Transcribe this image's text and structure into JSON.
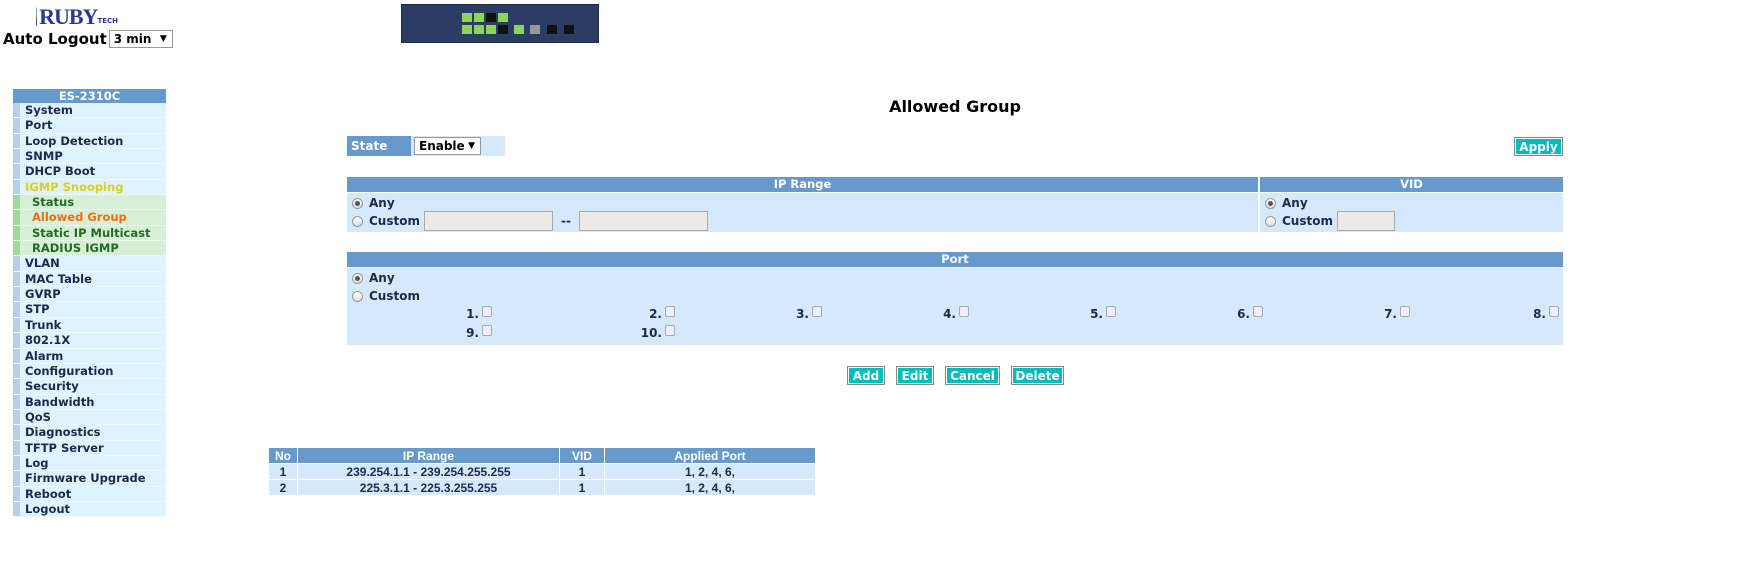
{
  "header": {
    "logo_text": "RUBY",
    "logo_sub": "TECH",
    "auto_logout_label": "Auto Logout",
    "auto_logout_value": "3 min"
  },
  "sidebar": {
    "title": "ES-2310C",
    "items": [
      {
        "label": "System",
        "type": "normal"
      },
      {
        "label": "Port",
        "type": "normal"
      },
      {
        "label": "Loop Detection",
        "type": "normal"
      },
      {
        "label": "SNMP",
        "type": "normal"
      },
      {
        "label": "DHCP Boot",
        "type": "normal"
      },
      {
        "label": "IGMP Snooping",
        "type": "yellow"
      },
      {
        "label": "Status",
        "type": "sub"
      },
      {
        "label": "Allowed Group",
        "type": "sub active"
      },
      {
        "label": "Static IP Multicast",
        "type": "sub"
      },
      {
        "label": "RADIUS IGMP",
        "type": "sub"
      },
      {
        "label": "VLAN",
        "type": "normal"
      },
      {
        "label": "MAC Table",
        "type": "normal"
      },
      {
        "label": "GVRP",
        "type": "normal"
      },
      {
        "label": "STP",
        "type": "normal"
      },
      {
        "label": "Trunk",
        "type": "normal"
      },
      {
        "label": "802.1X",
        "type": "normal"
      },
      {
        "label": "Alarm",
        "type": "normal"
      },
      {
        "label": "Configuration",
        "type": "normal"
      },
      {
        "label": "Security",
        "type": "normal"
      },
      {
        "label": "Bandwidth",
        "type": "normal"
      },
      {
        "label": "QoS",
        "type": "normal"
      },
      {
        "label": "Diagnostics",
        "type": "normal"
      },
      {
        "label": "TFTP Server",
        "type": "normal"
      },
      {
        "label": "Log",
        "type": "normal"
      },
      {
        "label": "Firmware Upgrade",
        "type": "normal"
      },
      {
        "label": "Reboot",
        "type": "normal"
      },
      {
        "label": "Logout",
        "type": "normal"
      }
    ]
  },
  "main": {
    "title": "Allowed Group",
    "state_label": "State",
    "state_value": "Enable",
    "apply": "Apply",
    "ip_range": {
      "header": "IP Range",
      "any": "Any",
      "custom": "Custom",
      "separator": "--",
      "selected": "any",
      "from": "",
      "to": ""
    },
    "vid": {
      "header": "VID",
      "any": "Any",
      "custom": "Custom",
      "selected": "any",
      "value": ""
    },
    "port": {
      "header": "Port",
      "any": "Any",
      "custom": "Custom",
      "selected": "any",
      "ports": [
        "1.",
        "2.",
        "3.",
        "4.",
        "5.",
        "6.",
        "7.",
        "8.",
        "9.",
        "10."
      ]
    },
    "buttons": {
      "add": "Add",
      "edit": "Edit",
      "cancel": "Cancel",
      "delete": "Delete"
    },
    "table": {
      "columns": [
        "No",
        "IP Range",
        "VID",
        "Applied Port"
      ],
      "rows": [
        [
          "1",
          "239.254.1.1 - 239.254.255.255",
          "1",
          "1, 2, 4, 6,"
        ],
        [
          "2",
          "225.3.1.1 - 225.3.255.255",
          "1",
          "1, 2, 4, 6,"
        ]
      ]
    }
  },
  "colors": {
    "header": "#6699cc",
    "panel": "#d4eafc",
    "button": "#00bdbd",
    "active_menu": "#f07010"
  }
}
